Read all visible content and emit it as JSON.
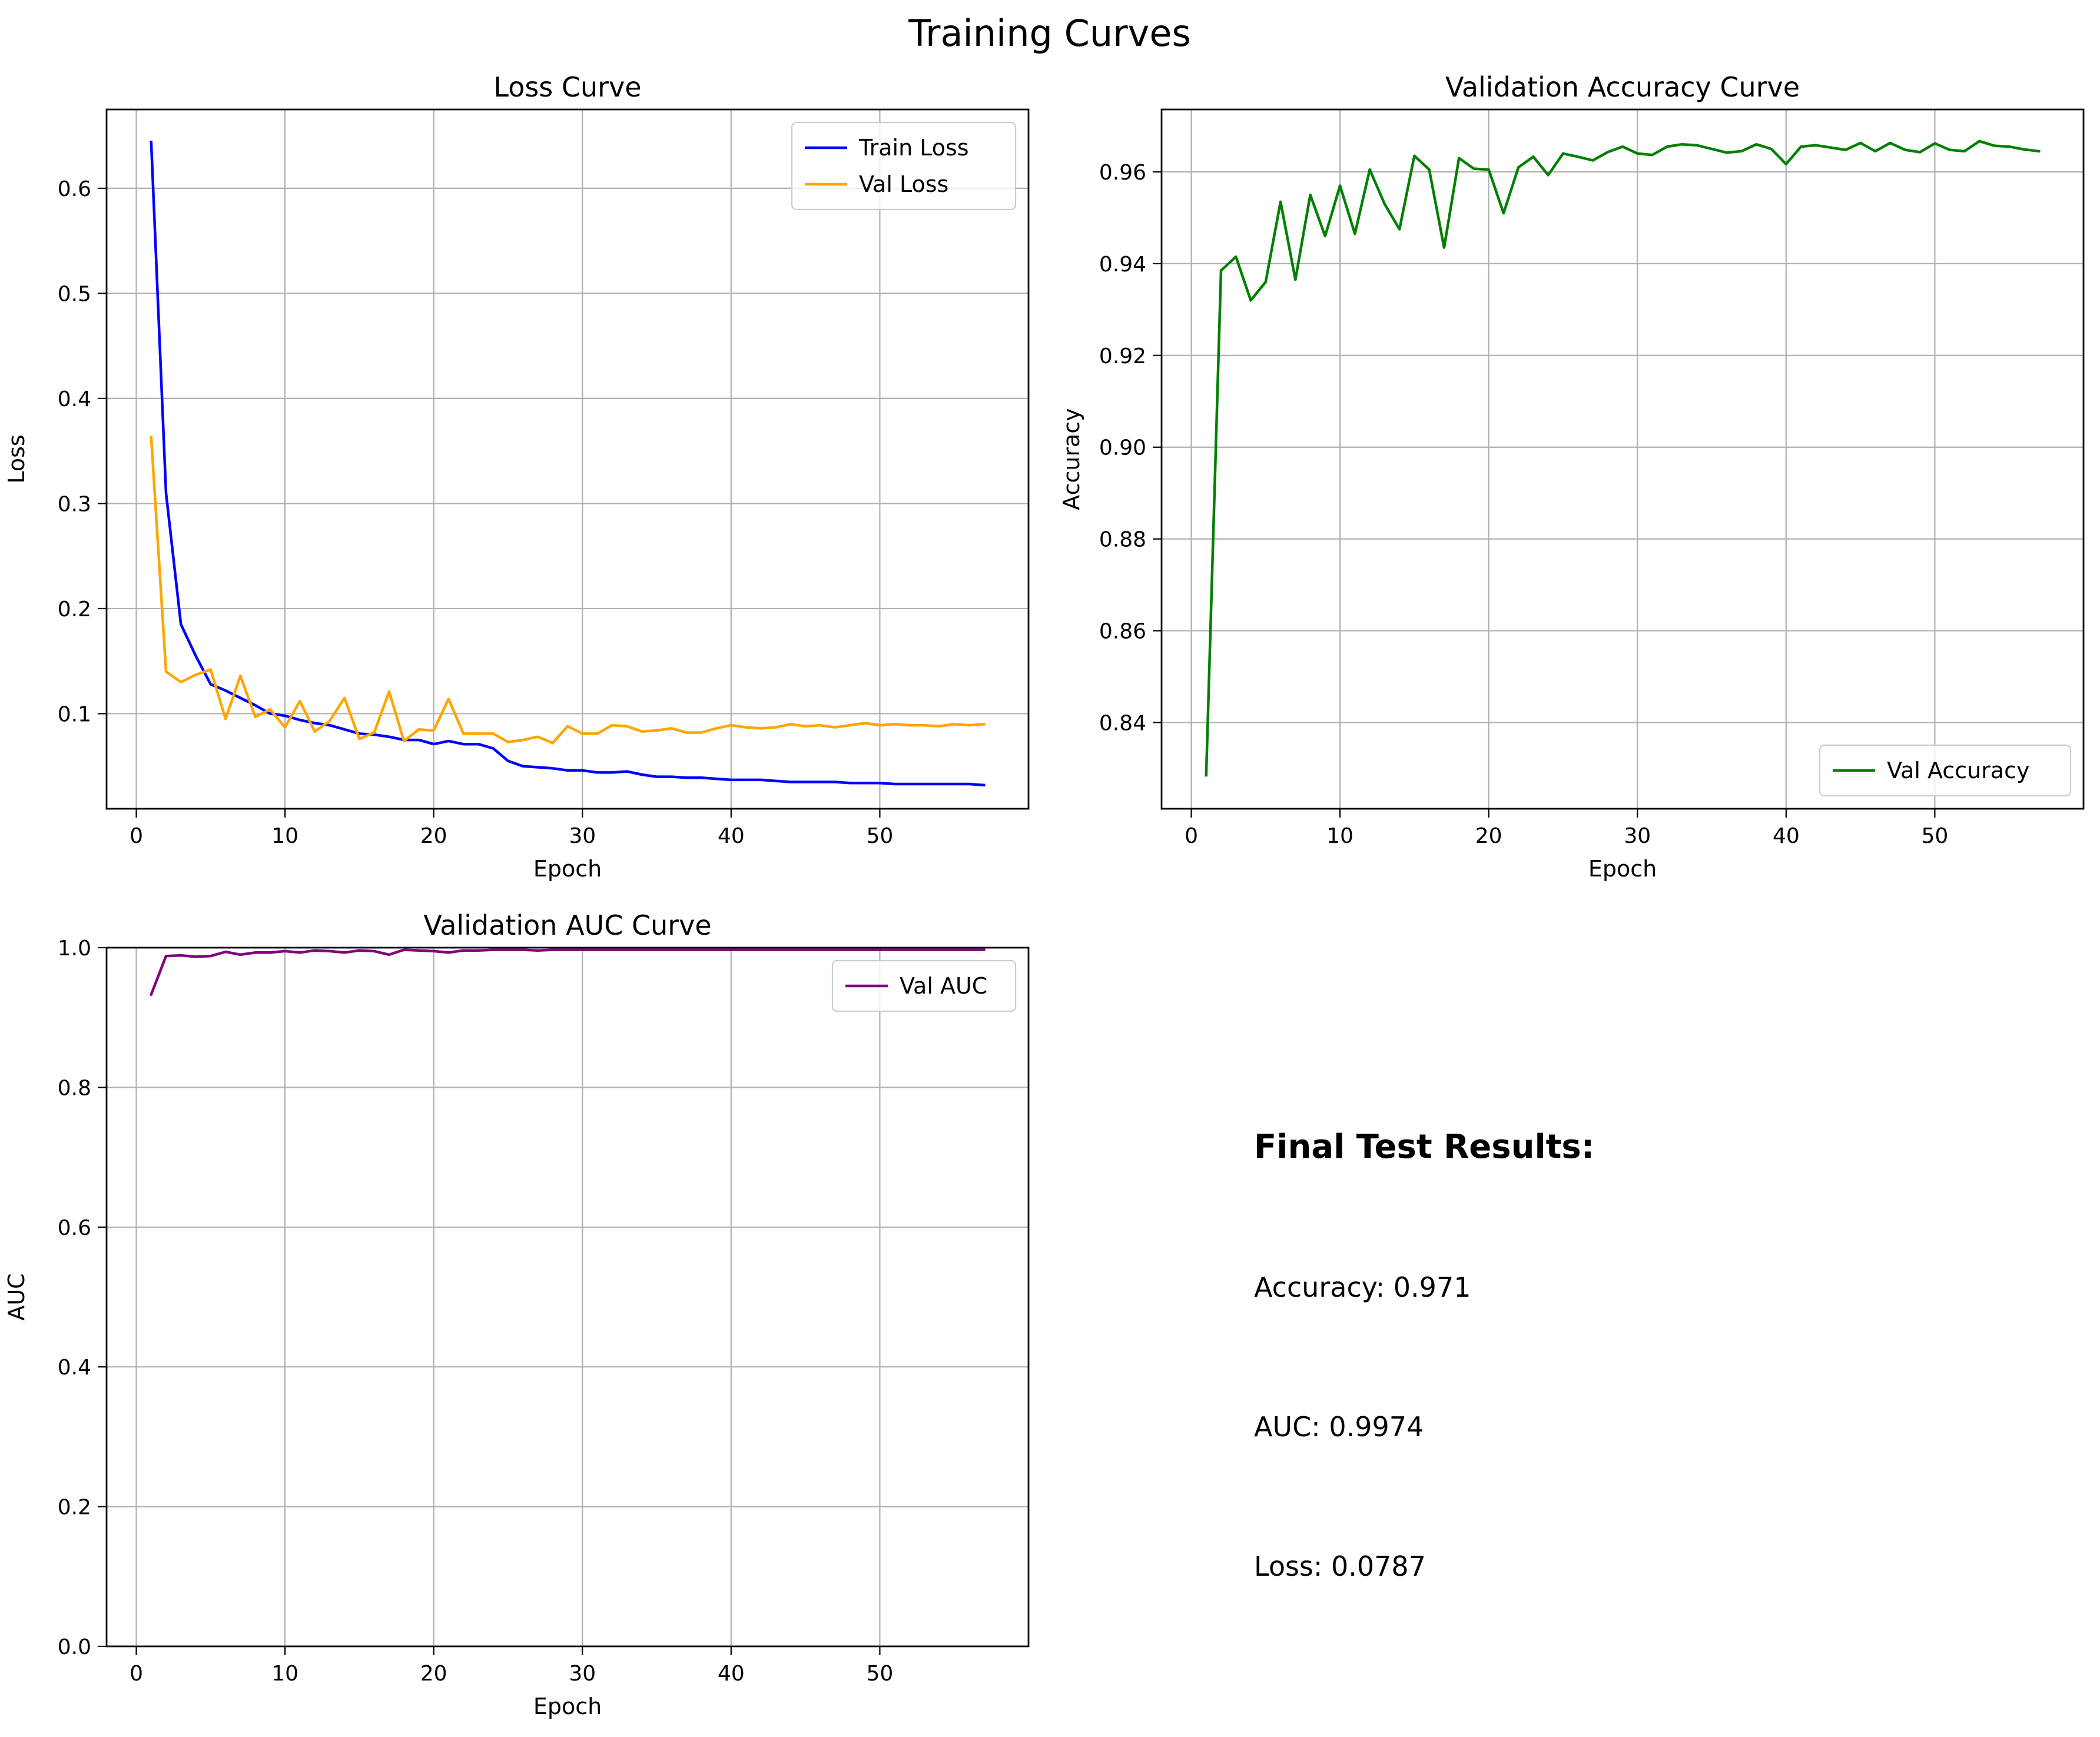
{
  "figure": {
    "suptitle": "Training Curves"
  },
  "colors": {
    "train_loss": "#0000ff",
    "val_loss": "#ffa500",
    "val_accuracy": "#008000",
    "val_auc": "#800080"
  },
  "chart_data": [
    {
      "id": "loss",
      "type": "line",
      "title": "Loss Curve",
      "xlabel": "Epoch",
      "ylabel": "Loss",
      "xlim": [
        -2,
        60
      ],
      "ylim": [
        0.0095,
        0.675
      ],
      "xticks": [
        0,
        10,
        20,
        30,
        40,
        50
      ],
      "yticks": [
        0.1,
        0.2,
        0.3,
        0.4,
        0.5,
        0.6
      ],
      "ytick_decimals": 1,
      "grid": true,
      "legend_position": "top-right",
      "x": [
        1,
        2,
        3,
        4,
        5,
        6,
        7,
        8,
        9,
        10,
        11,
        12,
        13,
        14,
        15,
        16,
        17,
        18,
        19,
        20,
        21,
        22,
        23,
        24,
        25,
        26,
        27,
        28,
        29,
        30,
        31,
        32,
        33,
        34,
        35,
        36,
        37,
        38,
        39,
        40,
        41,
        42,
        43,
        44,
        45,
        46,
        47,
        48,
        49,
        50,
        51,
        52,
        53,
        54,
        55,
        56,
        57
      ],
      "series": [
        {
          "name": "Train Loss",
          "color": "#0000ff",
          "values": [
            0.644,
            0.31,
            0.185,
            0.155,
            0.128,
            0.122,
            0.115,
            0.108,
            0.1,
            0.098,
            0.094,
            0.091,
            0.089,
            0.085,
            0.081,
            0.08,
            0.078,
            0.075,
            0.075,
            0.071,
            0.074,
            0.071,
            0.071,
            0.067,
            0.055,
            0.05,
            0.049,
            0.048,
            0.046,
            0.046,
            0.044,
            0.044,
            0.045,
            0.042,
            0.04,
            0.04,
            0.039,
            0.039,
            0.038,
            0.037,
            0.037,
            0.037,
            0.036,
            0.035,
            0.035,
            0.035,
            0.035,
            0.034,
            0.034,
            0.034,
            0.033,
            0.033,
            0.033,
            0.033,
            0.033,
            0.033,
            0.032
          ]
        },
        {
          "name": "Val Loss",
          "color": "#ffa500",
          "values": [
            0.363,
            0.14,
            0.13,
            0.137,
            0.142,
            0.095,
            0.136,
            0.097,
            0.104,
            0.087,
            0.112,
            0.083,
            0.093,
            0.115,
            0.076,
            0.082,
            0.121,
            0.074,
            0.085,
            0.084,
            0.114,
            0.081,
            0.081,
            0.081,
            0.073,
            0.075,
            0.078,
            0.072,
            0.088,
            0.081,
            0.081,
            0.089,
            0.088,
            0.083,
            0.084,
            0.086,
            0.082,
            0.082,
            0.086,
            0.089,
            0.087,
            0.086,
            0.087,
            0.09,
            0.088,
            0.089,
            0.087,
            0.089,
            0.091,
            0.089,
            0.09,
            0.089,
            0.089,
            0.088,
            0.09,
            0.089,
            0.09
          ]
        }
      ]
    },
    {
      "id": "accuracy",
      "type": "line",
      "title": "Validation Accuracy Curve",
      "xlabel": "Epoch",
      "ylabel": "Accuracy",
      "xlim": [
        -2,
        60
      ],
      "ylim": [
        0.8212,
        0.9736
      ],
      "xticks": [
        0,
        10,
        20,
        30,
        40,
        50
      ],
      "yticks": [
        0.84,
        0.86,
        0.88,
        0.9,
        0.92,
        0.94,
        0.96
      ],
      "ytick_decimals": 2,
      "grid": true,
      "legend_position": "bottom-right",
      "x": [
        1,
        2,
        3,
        4,
        5,
        6,
        7,
        8,
        9,
        10,
        11,
        12,
        13,
        14,
        15,
        16,
        17,
        18,
        19,
        20,
        21,
        22,
        23,
        24,
        25,
        26,
        27,
        28,
        29,
        30,
        31,
        32,
        33,
        34,
        35,
        36,
        37,
        38,
        39,
        40,
        41,
        42,
        43,
        44,
        45,
        46,
        47,
        48,
        49,
        50,
        51,
        52,
        53,
        54,
        55,
        56,
        57
      ],
      "series": [
        {
          "name": "Val Accuracy",
          "color": "#008000",
          "values": [
            0.8285,
            0.9385,
            0.9415,
            0.932,
            0.936,
            0.9535,
            0.9365,
            0.955,
            0.946,
            0.957,
            0.9465,
            0.9605,
            0.953,
            0.9475,
            0.9635,
            0.9605,
            0.9435,
            0.963,
            0.9607,
            0.9605,
            0.951,
            0.961,
            0.9633,
            0.9593,
            0.964,
            0.9633,
            0.9625,
            0.9643,
            0.9655,
            0.964,
            0.9637,
            0.9655,
            0.966,
            0.9658,
            0.965,
            0.9642,
            0.9645,
            0.966,
            0.965,
            0.9617,
            0.9655,
            0.9658,
            0.9653,
            0.9648,
            0.9663,
            0.9645,
            0.9663,
            0.9648,
            0.9643,
            0.9662,
            0.9648,
            0.9645,
            0.9667,
            0.9657,
            0.9655,
            0.9649,
            0.9645
          ]
        }
      ]
    },
    {
      "id": "auc",
      "type": "line",
      "title": "Validation AUC Curve",
      "xlabel": "Epoch",
      "ylabel": "AUC",
      "xlim": [
        -2,
        60
      ],
      "ylim": [
        0.0,
        1.0
      ],
      "xticks": [
        0,
        10,
        20,
        30,
        40,
        50
      ],
      "yticks": [
        0.0,
        0.2,
        0.4,
        0.6,
        0.8,
        1.0
      ],
      "ytick_decimals": 1,
      "grid": true,
      "legend_position": "top-right",
      "x": [
        1,
        2,
        3,
        4,
        5,
        6,
        7,
        8,
        9,
        10,
        11,
        12,
        13,
        14,
        15,
        16,
        17,
        18,
        19,
        20,
        21,
        22,
        23,
        24,
        25,
        26,
        27,
        28,
        29,
        30,
        31,
        32,
        33,
        34,
        35,
        36,
        37,
        38,
        39,
        40,
        41,
        42,
        43,
        44,
        45,
        46,
        47,
        48,
        49,
        50,
        51,
        52,
        53,
        54,
        55,
        56,
        57
      ],
      "series": [
        {
          "name": "Val AUC",
          "color": "#800080",
          "values": [
            0.933,
            0.988,
            0.989,
            0.987,
            0.988,
            0.994,
            0.99,
            0.993,
            0.993,
            0.995,
            0.993,
            0.996,
            0.995,
            0.993,
            0.996,
            0.995,
            0.99,
            0.997,
            0.996,
            0.995,
            0.993,
            0.996,
            0.996,
            0.997,
            0.997,
            0.997,
            0.996,
            0.997,
            0.997,
            0.997,
            0.997,
            0.997,
            0.997,
            0.997,
            0.997,
            0.997,
            0.997,
            0.997,
            0.997,
            0.997,
            0.997,
            0.997,
            0.997,
            0.997,
            0.997,
            0.997,
            0.997,
            0.997,
            0.997,
            0.997,
            0.997,
            0.997,
            0.997,
            0.997,
            0.997,
            0.997,
            0.997
          ]
        }
      ]
    }
  ],
  "results": {
    "heading": "Final Test Results:",
    "accuracy_line": "Accuracy: 0.971",
    "auc_line": "AUC: 0.9974",
    "loss_line": "Loss: 0.0787"
  }
}
